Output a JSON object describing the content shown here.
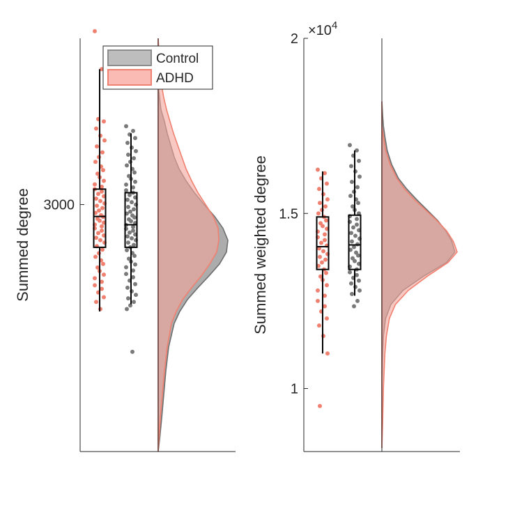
{
  "legend": {
    "placement": "top",
    "entries": [
      {
        "name": "Control",
        "fill": "#bdbdbd",
        "edge": "#8c8c8c"
      },
      {
        "name": "ADHD",
        "fill": "#f9bbb3",
        "edge": "#f08070"
      }
    ]
  },
  "colors": {
    "control_points": "#7a7a7a",
    "adhd_points": "#f08070",
    "control_density": "#9e9e9e",
    "adhd_density": "#f4a59a",
    "box": "#000000",
    "axis": "#262626"
  },
  "chart_data": [
    {
      "type": "raincloud",
      "ylabel": "Summed degree",
      "ylim": [
        1960,
        3700
      ],
      "yticks": [
        3000
      ],
      "ytick_labels": [
        "3000"
      ],
      "grid": false,
      "series": [
        {
          "name": "ADHD",
          "box": {
            "min": 2550,
            "q1": 2820,
            "median": 2950,
            "q3": 3065,
            "max": 3570
          },
          "points": [
            3730,
            3570,
            3360,
            3350,
            3320,
            3290,
            3270,
            3245,
            3220,
            3200,
            3180,
            3160,
            3145,
            3130,
            3115,
            3100,
            3085,
            3075,
            3065,
            3055,
            3045,
            3035,
            3025,
            3015,
            3005,
            2995,
            2985,
            2975,
            2965,
            2955,
            2948,
            2940,
            2932,
            2924,
            2916,
            2908,
            2900,
            2890,
            2880,
            2870,
            2860,
            2850,
            2840,
            2825,
            2810,
            2795,
            2780,
            2765,
            2750,
            2735,
            2720,
            2705,
            2690,
            2675,
            2660,
            2645,
            2630,
            2610,
            2590,
            2560
          ]
        },
        {
          "name": "Control",
          "box": {
            "min": 2580,
            "q1": 2820,
            "median": 2915,
            "q3": 3050,
            "max": 3300
          },
          "points": [
            3330,
            3310,
            3295,
            3280,
            3260,
            3240,
            3225,
            3210,
            3195,
            3180,
            3165,
            3150,
            3135,
            3120,
            3108,
            3096,
            3084,
            3072,
            3060,
            3050,
            3040,
            3030,
            3020,
            3010,
            3000,
            2990,
            2980,
            2970,
            2962,
            2954,
            2946,
            2938,
            2930,
            2922,
            2914,
            2906,
            2898,
            2890,
            2882,
            2874,
            2866,
            2858,
            2850,
            2840,
            2830,
            2820,
            2808,
            2796,
            2784,
            2772,
            2760,
            2748,
            2736,
            2722,
            2708,
            2694,
            2680,
            2665,
            2650,
            2635,
            2620,
            2605,
            2590,
            2575,
            2560,
            2380
          ]
        }
      ],
      "density": {
        "y": [
          1960,
          2010,
          2100,
          2200,
          2300,
          2400,
          2500,
          2550,
          2600,
          2650,
          2700,
          2750,
          2800,
          2850,
          2900,
          2950,
          3000,
          3050,
          3100,
          3150,
          3200,
          3250,
          3300,
          3350,
          3400,
          3450,
          3500,
          3600,
          3700
        ],
        "control": [
          0.0,
          0.02,
          0.05,
          0.08,
          0.11,
          0.15,
          0.23,
          0.31,
          0.42,
          0.57,
          0.73,
          0.88,
          0.98,
          1.0,
          0.93,
          0.81,
          0.66,
          0.52,
          0.4,
          0.3,
          0.23,
          0.18,
          0.13,
          0.09,
          0.04,
          0.02,
          0.0,
          0.0,
          0.0
        ],
        "adhd": [
          0.0,
          0.01,
          0.03,
          0.06,
          0.09,
          0.13,
          0.19,
          0.26,
          0.35,
          0.48,
          0.62,
          0.74,
          0.84,
          0.87,
          0.86,
          0.79,
          0.68,
          0.57,
          0.48,
          0.4,
          0.34,
          0.28,
          0.22,
          0.17,
          0.12,
          0.08,
          0.05,
          0.02,
          0.0
        ]
      }
    },
    {
      "type": "raincloud",
      "ylabel": "Summed weighted degree",
      "ylim": [
        8200,
        20000
      ],
      "yticks": [
        10000,
        15000,
        20000
      ],
      "ytick_labels": [
        "1",
        "1.5",
        "2"
      ],
      "exponent_label": "×10",
      "exponent_power": "4",
      "grid": false,
      "series": [
        {
          "name": "ADHD",
          "box": {
            "min": 11000,
            "q1": 13400,
            "median": 14050,
            "q3": 14900,
            "max": 16200
          },
          "points": [
            16250,
            16150,
            16000,
            15850,
            15700,
            15550,
            15400,
            15300,
            15200,
            15100,
            15000,
            14900,
            14800,
            14720,
            14640,
            14560,
            14480,
            14400,
            14320,
            14240,
            14160,
            14080,
            14000,
            13920,
            13840,
            13760,
            13680,
            13600,
            13500,
            13400,
            13300,
            13200,
            13100,
            12950,
            12800,
            12650,
            12500,
            12350,
            12200,
            12000,
            11800,
            11500,
            11000,
            9500
          ]
        },
        {
          "name": "Control",
          "box": {
            "min": 12650,
            "q1": 13400,
            "median": 14100,
            "q3": 14950,
            "max": 16800
          },
          "points": [
            16950,
            16800,
            16650,
            16500,
            16350,
            16200,
            16050,
            15900,
            15750,
            15620,
            15500,
            15400,
            15300,
            15200,
            15100,
            15000,
            14920,
            14840,
            14760,
            14680,
            14600,
            14520,
            14440,
            14360,
            14280,
            14200,
            14120,
            14040,
            13960,
            13880,
            13800,
            13720,
            13640,
            13560,
            13480,
            13400,
            13320,
            13240,
            13160,
            13080,
            13000,
            12900,
            12800,
            12700,
            12500,
            12350
          ]
        }
      ],
      "density": {
        "y": [
          8300,
          9000,
          10000,
          11000,
          11500,
          12000,
          12400,
          12800,
          13200,
          13600,
          13900,
          14200,
          14500,
          14800,
          15100,
          15400,
          15700,
          16000,
          16400,
          16800,
          17200,
          17500,
          17800,
          18200
        ],
        "control": [
          0.0,
          0.0,
          0.0,
          0.01,
          0.02,
          0.05,
          0.12,
          0.28,
          0.55,
          0.86,
          0.97,
          0.93,
          0.85,
          0.74,
          0.6,
          0.46,
          0.33,
          0.22,
          0.13,
          0.07,
          0.04,
          0.02,
          0.01,
          0.0
        ],
        "adhd": [
          0.0,
          0.01,
          0.02,
          0.04,
          0.06,
          0.1,
          0.18,
          0.35,
          0.6,
          0.88,
          1.0,
          0.95,
          0.86,
          0.73,
          0.58,
          0.43,
          0.3,
          0.2,
          0.11,
          0.05,
          0.02,
          0.0,
          0.0,
          0.0
        ]
      }
    }
  ]
}
